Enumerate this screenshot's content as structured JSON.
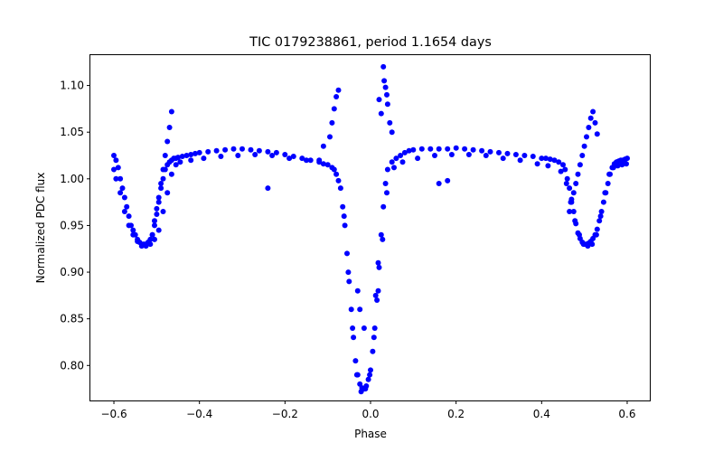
{
  "chart_data": {
    "type": "scatter",
    "title": "TIC 0179238861, period 1.1654 days",
    "xlabel": "Phase",
    "ylabel": "Normalized PDC flux",
    "xlim": [
      -0.655,
      0.655
    ],
    "ylim": [
      0.7625,
      1.1335
    ],
    "x_ticks": [
      -0.6,
      -0.4,
      -0.2,
      0.0,
      0.2,
      0.4,
      0.6
    ],
    "x_tick_labels": [
      "−0.6",
      "−0.4",
      "−0.2",
      "0.0",
      "0.2",
      "0.4",
      "0.6"
    ],
    "y_ticks": [
      0.8,
      0.85,
      0.9,
      0.95,
      1.0,
      1.05,
      1.1
    ],
    "y_tick_labels": [
      "0.80",
      "0.85",
      "0.90",
      "0.95",
      "1.00",
      "1.05",
      "1.10"
    ],
    "grid": false,
    "marker_color": "#0000ff",
    "series": [
      {
        "description_points": "phased light curve samples",
        "x": [
          -0.6,
          -0.595,
          -0.59,
          -0.585,
          -0.58,
          -0.575,
          -0.57,
          -0.565,
          -0.56,
          -0.555,
          -0.55,
          -0.545,
          -0.54,
          -0.535,
          -0.53,
          -0.525,
          -0.52,
          -0.515,
          -0.51,
          -0.505,
          -0.5,
          -0.495,
          -0.49,
          -0.485,
          -0.48,
          -0.475,
          -0.47,
          -0.465,
          -0.46,
          -0.455,
          -0.45,
          -0.44,
          -0.43,
          -0.42,
          -0.41,
          -0.4,
          -0.38,
          -0.36,
          -0.34,
          -0.32,
          -0.3,
          -0.28,
          -0.26,
          -0.24,
          -0.22,
          -0.2,
          -0.18,
          -0.16,
          -0.14,
          -0.12,
          -0.1,
          -0.09,
          -0.08,
          -0.07,
          -0.065,
          -0.06,
          -0.055,
          -0.05,
          -0.045,
          -0.04,
          -0.035,
          -0.03,
          -0.025,
          -0.02,
          -0.015,
          -0.01,
          -0.005,
          0.0,
          0.005,
          0.01,
          0.015,
          0.02,
          0.025,
          0.03,
          0.035,
          0.04,
          0.05,
          0.06,
          0.07,
          0.08,
          0.09,
          0.1,
          0.12,
          0.14,
          0.16,
          0.18,
          0.2,
          0.22,
          0.24,
          0.26,
          0.28,
          0.3,
          0.32,
          0.34,
          0.36,
          0.38,
          0.4,
          0.41,
          0.42,
          0.43,
          0.44,
          0.45,
          0.455,
          0.46,
          0.465,
          0.47,
          0.475,
          0.48,
          0.485,
          0.49,
          0.495,
          0.5,
          0.505,
          0.51,
          0.515,
          0.52,
          0.525,
          0.53,
          0.535,
          0.54,
          0.545,
          0.55,
          0.555,
          0.56,
          0.565,
          0.57,
          0.575,
          0.58,
          0.585,
          0.59,
          0.595,
          0.6,
          -0.6,
          -0.595,
          -0.585,
          -0.575,
          -0.565,
          -0.555,
          -0.545,
          -0.535,
          -0.525,
          -0.515,
          -0.505,
          -0.495,
          -0.485,
          -0.475,
          -0.465,
          -0.455,
          -0.445,
          -0.42,
          -0.39,
          -0.35,
          -0.31,
          -0.27,
          -0.23,
          -0.19,
          -0.15,
          -0.11,
          -0.085,
          -0.075,
          -0.062,
          -0.052,
          -0.042,
          -0.032,
          -0.022,
          -0.012,
          -0.002,
          0.008,
          0.018,
          0.028,
          0.038,
          0.055,
          0.075,
          0.11,
          0.15,
          0.19,
          0.23,
          0.27,
          0.31,
          0.35,
          0.39,
          0.415,
          0.445,
          0.458,
          0.468,
          0.478,
          0.488,
          0.498,
          0.508,
          0.518,
          0.528,
          0.538,
          0.548,
          0.558,
          0.568,
          0.578,
          0.588,
          0.598,
          -0.51,
          -0.505,
          -0.5,
          -0.495,
          -0.49,
          -0.485,
          -0.48,
          -0.475,
          -0.47,
          -0.465,
          -0.095,
          -0.09,
          -0.085,
          -0.08,
          -0.075,
          -0.11,
          -0.12,
          0.03,
          0.032,
          0.035,
          0.038,
          0.04,
          0.045,
          0.05,
          0.02,
          0.025,
          0.465,
          0.47,
          0.475,
          0.48,
          0.485,
          0.49,
          0.495,
          0.5,
          0.505,
          0.51,
          0.515,
          0.52,
          0.525,
          0.53,
          -0.24,
          0.16,
          0.18,
          -0.03,
          -0.025,
          -0.015,
          0.012,
          0.018
        ],
        "y": [
          1.025,
          1.02,
          1.012,
          1.0,
          0.99,
          0.98,
          0.97,
          0.96,
          0.95,
          0.945,
          0.94,
          0.935,
          0.932,
          0.93,
          0.93,
          0.93,
          0.932,
          0.935,
          0.94,
          0.95,
          0.962,
          0.975,
          0.99,
          1.0,
          1.01,
          1.015,
          1.018,
          1.02,
          1.022,
          1.022,
          1.023,
          1.024,
          1.025,
          1.026,
          1.027,
          1.028,
          1.029,
          1.03,
          1.031,
          1.032,
          1.032,
          1.031,
          1.03,
          1.029,
          1.028,
          1.026,
          1.024,
          1.022,
          1.02,
          1.018,
          1.015,
          1.012,
          1.005,
          0.99,
          0.97,
          0.95,
          0.92,
          0.89,
          0.86,
          0.83,
          0.805,
          0.79,
          0.78,
          0.776,
          0.775,
          0.778,
          0.785,
          0.795,
          0.815,
          0.84,
          0.87,
          0.905,
          0.94,
          0.97,
          0.995,
          1.01,
          1.018,
          1.022,
          1.025,
          1.028,
          1.03,
          1.031,
          1.032,
          1.032,
          1.032,
          1.032,
          1.033,
          1.032,
          1.031,
          1.03,
          1.029,
          1.028,
          1.027,
          1.026,
          1.025,
          1.024,
          1.022,
          1.022,
          1.021,
          1.02,
          1.018,
          1.015,
          1.01,
          1.0,
          0.99,
          0.978,
          0.965,
          0.952,
          0.942,
          0.936,
          0.932,
          0.93,
          0.93,
          0.931,
          0.933,
          0.936,
          0.94,
          0.946,
          0.955,
          0.965,
          0.975,
          0.985,
          0.995,
          1.005,
          1.012,
          1.016,
          1.018,
          1.019,
          1.02,
          1.02,
          1.021,
          1.022,
          1.01,
          1.0,
          0.985,
          0.965,
          0.95,
          0.94,
          0.933,
          0.928,
          0.928,
          0.93,
          0.935,
          0.945,
          0.965,
          0.985,
          1.005,
          1.015,
          1.018,
          1.02,
          1.022,
          1.024,
          1.025,
          1.026,
          1.025,
          1.022,
          1.02,
          1.016,
          1.01,
          0.998,
          0.96,
          0.9,
          0.84,
          0.79,
          0.772,
          0.775,
          0.79,
          0.83,
          0.88,
          0.935,
          0.985,
          1.012,
          1.018,
          1.022,
          1.025,
          1.026,
          1.026,
          1.025,
          1.022,
          1.02,
          1.016,
          1.014,
          1.008,
          0.995,
          0.975,
          0.955,
          0.94,
          0.93,
          0.928,
          0.93,
          0.94,
          0.96,
          0.985,
          1.005,
          1.012,
          1.014,
          1.015,
          1.016,
          0.94,
          0.955,
          0.968,
          0.98,
          0.995,
          1.01,
          1.025,
          1.04,
          1.055,
          1.072,
          1.045,
          1.06,
          1.075,
          1.088,
          1.095,
          1.035,
          1.02,
          1.12,
          1.105,
          1.098,
          1.09,
          1.08,
          1.06,
          1.05,
          1.085,
          1.07,
          0.965,
          0.975,
          0.985,
          0.995,
          1.005,
          1.015,
          1.025,
          1.035,
          1.045,
          1.055,
          1.065,
          1.072,
          1.06,
          1.048,
          0.99,
          0.995,
          0.998,
          0.88,
          0.86,
          0.84,
          0.875,
          0.91
        ]
      }
    ]
  }
}
